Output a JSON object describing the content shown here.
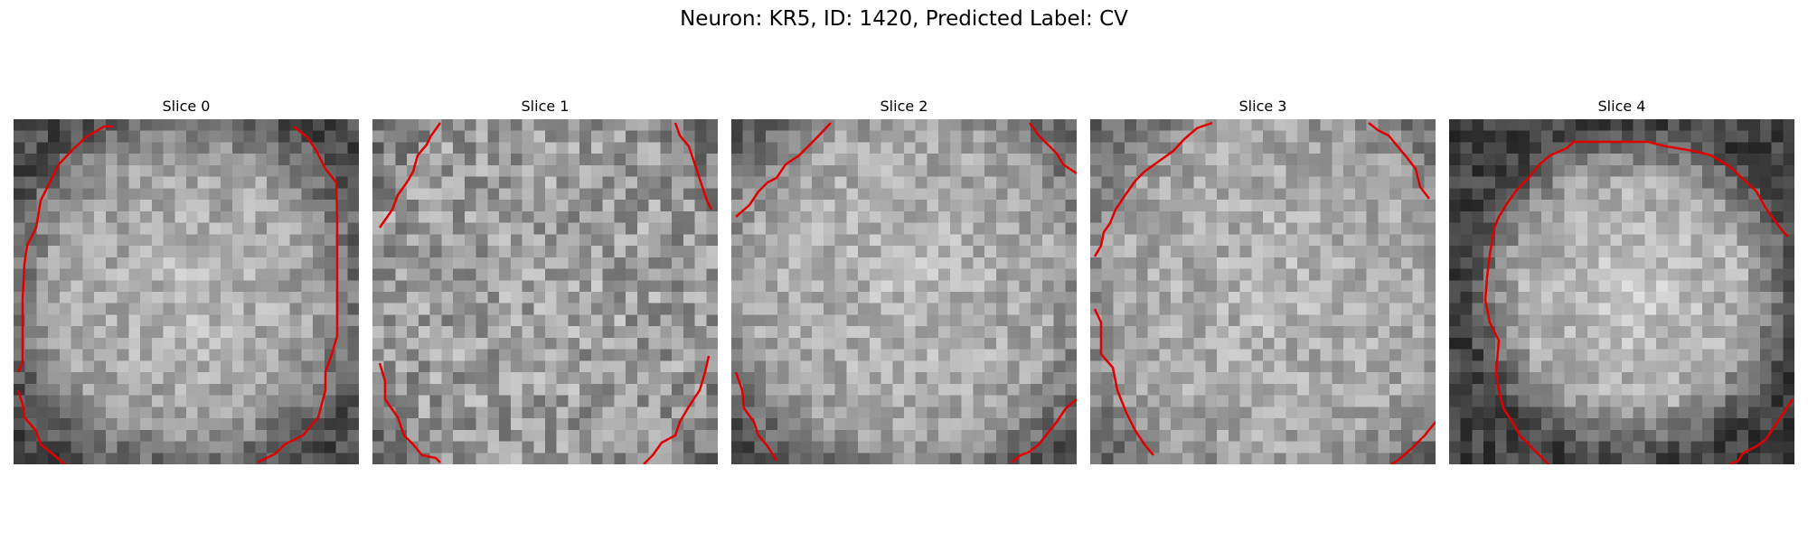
{
  "figure": {
    "title": "Neuron: KR5, ID: 1420, Predicted Label: CV"
  },
  "panels": [
    {
      "title": "Slice 0",
      "image": "grayscale-noise-image",
      "contour_color": "#ff0000"
    },
    {
      "title": "Slice 1",
      "image": "grayscale-noise-image",
      "contour_color": "#ff0000"
    },
    {
      "title": "Slice 2",
      "image": "grayscale-noise-image",
      "contour_color": "#ff0000"
    },
    {
      "title": "Slice 3",
      "image": "grayscale-noise-image",
      "contour_color": "#ff0000"
    },
    {
      "title": "Slice 4",
      "image": "grayscale-noise-image",
      "contour_color": "#ff0000"
    }
  ]
}
